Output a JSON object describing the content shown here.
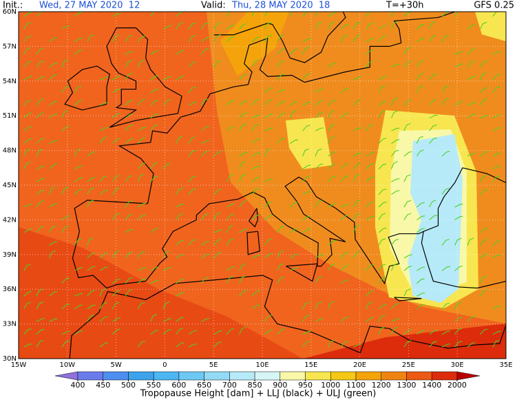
{
  "header": {
    "init_label": "Init.:",
    "init_value": "Wed, 27 MAY 2020  12",
    "valid_label": "Valid:",
    "valid_value": "Thu, 28 MAY 2020  18",
    "lead": "T=+30h",
    "model": "GFS 0.25"
  },
  "map": {
    "lat_labels": [
      "60N",
      "57N",
      "54N",
      "51N",
      "48N",
      "45N",
      "42N",
      "39N",
      "36N",
      "33N",
      "30N"
    ],
    "lon_labels": [
      "15W",
      "10W",
      "5W",
      "0",
      "5E",
      "10E",
      "15E",
      "20E",
      "25E",
      "30E",
      "35E"
    ]
  },
  "colorbar": {
    "levels": [
      400,
      450,
      500,
      550,
      600,
      650,
      700,
      850,
      900,
      950,
      1000,
      1100,
      1200,
      1300,
      1400,
      2000
    ],
    "colors": [
      "#9070dc",
      "#6a7cec",
      "#4e8ef0",
      "#3ca2ec",
      "#4cb6f2",
      "#6ec8f4",
      "#92daf6",
      "#b6eaf8",
      "#d6f6f6",
      "#f8f8a8",
      "#f8e650",
      "#f4c814",
      "#f4a40a",
      "#f08410",
      "#ec5a14",
      "#dc2c0c",
      "#b80000"
    ]
  },
  "caption": "Tropopause Height [dam] + LLJ (black) + ULJ (green)"
}
